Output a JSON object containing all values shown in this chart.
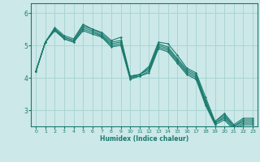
{
  "title": "",
  "xlabel": "Humidex (Indice chaleur)",
  "xlim": [
    -0.5,
    23.5
  ],
  "ylim": [
    2.5,
    6.3
  ],
  "yticks": [
    3,
    4,
    5,
    6
  ],
  "xticks": [
    0,
    1,
    2,
    3,
    4,
    5,
    6,
    7,
    8,
    9,
    10,
    11,
    12,
    13,
    14,
    15,
    16,
    17,
    18,
    19,
    20,
    21,
    22,
    23
  ],
  "bg_color": "#cce8e8",
  "grid_color": "#aad4d4",
  "line_color": "#1a7a6e",
  "lines": [
    [
      0,
      4.2,
      1,
      5.1,
      2,
      5.55,
      3,
      5.3,
      4,
      5.2,
      5,
      5.65,
      6,
      5.5,
      7,
      5.4,
      8,
      5.15,
      9,
      5.25,
      10,
      4.05,
      11,
      4.1,
      12,
      4.35,
      13,
      5.1,
      14,
      5.05,
      15,
      4.7,
      16,
      4.3,
      17,
      4.15,
      18,
      3.4,
      19,
      2.65,
      20,
      2.9,
      21,
      2.55,
      22,
      2.75,
      23,
      2.75
    ],
    [
      0,
      4.2,
      1,
      5.1,
      2,
      5.5,
      3,
      5.25,
      4,
      5.15,
      5,
      5.6,
      6,
      5.5,
      7,
      5.35,
      8,
      5.1,
      9,
      5.15,
      10,
      4.05,
      11,
      4.1,
      12,
      4.3,
      13,
      5.05,
      14,
      4.95,
      15,
      4.6,
      16,
      4.25,
      17,
      4.1,
      18,
      3.3,
      19,
      2.65,
      20,
      2.85,
      21,
      2.5,
      22,
      2.7,
      23,
      2.7
    ],
    [
      0,
      4.2,
      1,
      5.1,
      2,
      5.5,
      3,
      5.25,
      4,
      5.15,
      5,
      5.55,
      6,
      5.45,
      7,
      5.3,
      8,
      5.05,
      9,
      5.1,
      10,
      4.0,
      11,
      4.1,
      12,
      4.25,
      13,
      5.0,
      14,
      4.9,
      15,
      4.55,
      16,
      4.2,
      17,
      4.05,
      18,
      3.25,
      19,
      2.6,
      20,
      2.8,
      21,
      2.5,
      22,
      2.65,
      23,
      2.65
    ],
    [
      0,
      4.2,
      1,
      5.1,
      2,
      5.5,
      3,
      5.2,
      4,
      5.1,
      5,
      5.5,
      6,
      5.4,
      7,
      5.28,
      8,
      5.0,
      9,
      5.05,
      10,
      4.0,
      11,
      4.05,
      12,
      4.2,
      13,
      4.95,
      14,
      4.85,
      15,
      4.5,
      16,
      4.15,
      17,
      4.0,
      18,
      3.2,
      19,
      2.6,
      20,
      2.75,
      21,
      2.45,
      22,
      2.6,
      23,
      2.6
    ],
    [
      0,
      4.2,
      1,
      5.1,
      2,
      5.45,
      3,
      5.2,
      4,
      5.1,
      5,
      5.45,
      6,
      5.35,
      7,
      5.25,
      8,
      4.95,
      9,
      5.0,
      10,
      3.95,
      11,
      4.05,
      12,
      4.15,
      13,
      4.9,
      14,
      4.8,
      15,
      4.45,
      16,
      4.1,
      17,
      3.95,
      18,
      3.15,
      19,
      2.55,
      20,
      2.7,
      21,
      2.4,
      22,
      2.55,
      23,
      2.55
    ]
  ]
}
